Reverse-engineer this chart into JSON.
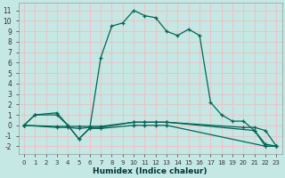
{
  "bg_color": "#c5e8e5",
  "grid_color": "#e8c5c5",
  "line_color": "#006655",
  "xlabel": "Humidex (Indice chaleur)",
  "xlim": [
    -0.5,
    23.5
  ],
  "ylim": [
    -2.7,
    11.7
  ],
  "xticks": [
    0,
    1,
    2,
    3,
    4,
    5,
    6,
    7,
    8,
    9,
    10,
    11,
    12,
    13,
    14,
    15,
    16,
    17,
    18,
    19,
    20,
    21,
    22,
    23
  ],
  "yticks": [
    -2,
    -1,
    0,
    1,
    2,
    3,
    4,
    5,
    6,
    7,
    8,
    9,
    10,
    11
  ],
  "series": [
    {
      "x": [
        0,
        1,
        3,
        4,
        5,
        6,
        7,
        8,
        9,
        10,
        11,
        12,
        13,
        14,
        15,
        16,
        17,
        18,
        19,
        20,
        21,
        22,
        23
      ],
      "y": [
        0,
        1,
        1,
        0,
        -1.3,
        -0.25,
        6.5,
        9.5,
        9.8,
        11.0,
        10.5,
        10.3,
        9.0,
        8.6,
        9.2,
        8.6,
        2.2,
        1.0,
        0.4,
        0.4,
        -0.5,
        -2.0,
        -2.0
      ]
    },
    {
      "x": [
        0,
        1,
        3,
        4,
        5,
        6,
        7,
        10,
        11,
        12,
        13,
        22,
        23
      ],
      "y": [
        0,
        1,
        1.2,
        0,
        -1.3,
        -0.3,
        -0.3,
        0,
        0,
        0,
        0,
        -2,
        -2
      ]
    },
    {
      "x": [
        0,
        3,
        4,
        5,
        6,
        7,
        10,
        11,
        12,
        13,
        21,
        22,
        23
      ],
      "y": [
        0,
        -0.2,
        -0.2,
        -0.3,
        -0.2,
        -0.2,
        0.3,
        0.3,
        0.3,
        0.3,
        -0.5,
        -1.8,
        -2
      ]
    },
    {
      "x": [
        0,
        3,
        4,
        5,
        6,
        7,
        10,
        11,
        12,
        13,
        20,
        21,
        22,
        23
      ],
      "y": [
        0,
        -0.1,
        -0.1,
        -0.1,
        -0.1,
        -0.1,
        0.3,
        0.3,
        0.3,
        0.3,
        -0.2,
        -0.2,
        -0.5,
        -2
      ]
    }
  ]
}
